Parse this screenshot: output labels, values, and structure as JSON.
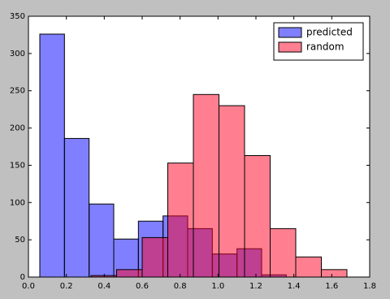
{
  "chart_data": {
    "type": "histogram",
    "series": [
      {
        "name": "predicted",
        "color": "#0000ff",
        "bins": [
          0.06,
          0.19,
          0.32,
          0.45,
          0.58,
          0.71,
          0.84,
          0.97,
          1.1,
          1.23,
          1.36
        ],
        "values": [
          326,
          186,
          98,
          51,
          75,
          82,
          65,
          31,
          38,
          3
        ]
      },
      {
        "name": "random",
        "color": "#ff0022",
        "bins": [
          0.33,
          0.465,
          0.6,
          0.735,
          0.87,
          1.005,
          1.14,
          1.275,
          1.41,
          1.545,
          1.68
        ],
        "values": [
          2,
          10,
          53,
          153,
          245,
          230,
          163,
          65,
          27,
          10
        ]
      }
    ],
    "xlim": [
      0,
      1.8
    ],
    "xticks": [
      {
        "value": 0,
        "label": "0.0"
      },
      {
        "value": 0.2,
        "label": "0.2"
      },
      {
        "value": 0.4,
        "label": "0.4"
      },
      {
        "value": 0.6,
        "label": "0.6"
      },
      {
        "value": 0.8,
        "label": "0.8"
      },
      {
        "value": 1,
        "label": "1.0"
      },
      {
        "value": 1.2,
        "label": "1.2"
      },
      {
        "value": 1.4,
        "label": "1.4"
      },
      {
        "value": 1.6,
        "label": "1.6"
      },
      {
        "value": 1.8,
        "label": "1.8"
      }
    ],
    "ylim": [
      0,
      350
    ],
    "yticks": [
      0,
      50,
      100,
      150,
      200,
      250,
      300,
      350
    ],
    "legend": "upper right",
    "opacity": 0.5
  }
}
